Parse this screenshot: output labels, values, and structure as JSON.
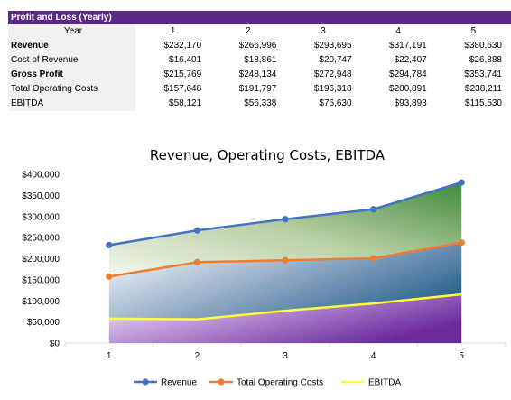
{
  "table": {
    "title": "Profit and Loss (Yearly)",
    "year_label": "Year",
    "years": [
      "1",
      "2",
      "3",
      "4",
      "5"
    ],
    "rows": [
      {
        "label": "Revenue",
        "bold": true,
        "values": [
          "$232,170",
          "$266,996",
          "$293,695",
          "$317,191",
          "$380,630"
        ]
      },
      {
        "label": "Cost of Revenue",
        "bold": false,
        "values": [
          "$16,401",
          "$18,861",
          "$20,747",
          "$22,407",
          "$26,888"
        ]
      },
      {
        "label": "Gross Profit",
        "bold": true,
        "values": [
          "$215,769",
          "$248,134",
          "$272,948",
          "$294,784",
          "$353,741"
        ]
      },
      {
        "label": "Total Operating Costs",
        "bold": false,
        "values": [
          "$157,648",
          "$191,797",
          "$196,318",
          "$200,891",
          "$238,211"
        ]
      },
      {
        "label": "EBITDA",
        "bold": false,
        "values": [
          "$58,121",
          "$56,338",
          "$76,630",
          "$93,893",
          "$115,530"
        ]
      }
    ]
  },
  "colors": {
    "header_bg": "#5b2a86",
    "revenue": "#4472c4",
    "operating_costs": "#ed7d31",
    "ebitda": "#ffff33"
  },
  "chart_data": {
    "type": "line",
    "title": "Revenue, Operating Costs, EBITDA",
    "x": [
      1,
      2,
      3,
      4,
      5
    ],
    "series": [
      {
        "name": "Revenue",
        "values": [
          232170,
          266996,
          293695,
          317191,
          380630
        ]
      },
      {
        "name": "Total Operating Costs",
        "values": [
          157648,
          191797,
          196318,
          200891,
          238211
        ]
      },
      {
        "name": "EBITDA",
        "values": [
          58121,
          56338,
          76630,
          93893,
          115530
        ]
      }
    ],
    "ylim": [
      0,
      400000
    ],
    "y_ticks": [
      "$0",
      "$50,000",
      "$100,000",
      "$150,000",
      "$200,000",
      "$250,000",
      "$300,000",
      "$350,000",
      "$400,000"
    ],
    "grid": false,
    "legend": "bottom"
  }
}
